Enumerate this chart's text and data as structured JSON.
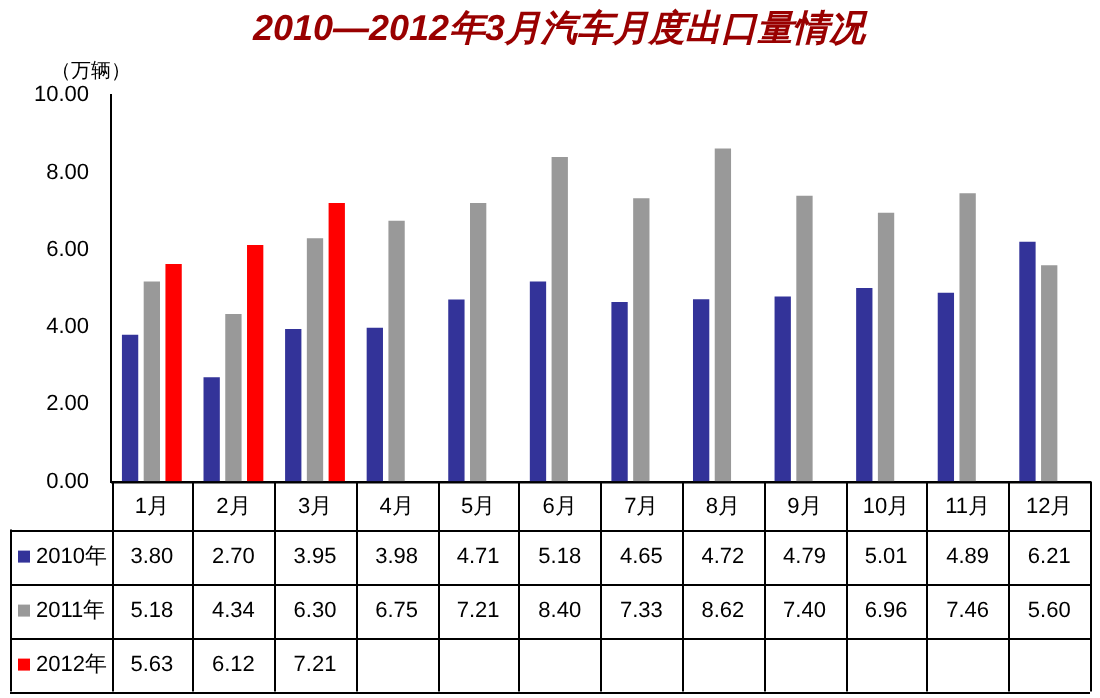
{
  "chart_data": {
    "type": "bar",
    "title": "2010—2012年3月汽车月度出口量情况",
    "ylabel": "（万辆）",
    "categories": [
      "1月",
      "2月",
      "3月",
      "4月",
      "5月",
      "6月",
      "7月",
      "8月",
      "9月",
      "10月",
      "11月",
      "12月"
    ],
    "series": [
      {
        "name": "2010年",
        "color": "#333399",
        "values": [
          3.8,
          2.7,
          3.95,
          3.98,
          4.71,
          5.18,
          4.65,
          4.72,
          4.79,
          5.01,
          4.89,
          6.21
        ],
        "value_labels": [
          "3.80",
          "2.70",
          "3.95",
          "3.98",
          "4.71",
          "5.18",
          "4.65",
          "4.72",
          "4.79",
          "5.01",
          "4.89",
          "6.21"
        ]
      },
      {
        "name": "2011年",
        "color": "#999999",
        "values": [
          5.18,
          4.34,
          6.3,
          6.75,
          7.21,
          8.4,
          7.33,
          8.62,
          7.4,
          6.96,
          7.46,
          5.6
        ],
        "value_labels": [
          "5.18",
          "4.34",
          "6.30",
          "6.75",
          "7.21",
          "8.40",
          "7.33",
          "8.62",
          "7.40",
          "6.96",
          "7.46",
          "5.60"
        ]
      },
      {
        "name": "2012年",
        "color": "#ff0000",
        "values": [
          5.63,
          6.12,
          7.21,
          null,
          null,
          null,
          null,
          null,
          null,
          null,
          null,
          null
        ],
        "value_labels": [
          "5.63",
          "6.12",
          "7.21",
          null,
          null,
          null,
          null,
          null,
          null,
          null,
          null,
          null
        ]
      }
    ],
    "ylim": [
      0,
      10
    ],
    "yticks": [
      {
        "value": 0,
        "label": "0.00"
      },
      {
        "value": 2,
        "label": "2.00"
      },
      {
        "value": 4,
        "label": "4.00"
      },
      {
        "value": 6,
        "label": "6.00"
      },
      {
        "value": 8,
        "label": "8.00"
      },
      {
        "value": 10,
        "label": "10.00"
      }
    ],
    "grid": false,
    "legend": "bottom"
  }
}
